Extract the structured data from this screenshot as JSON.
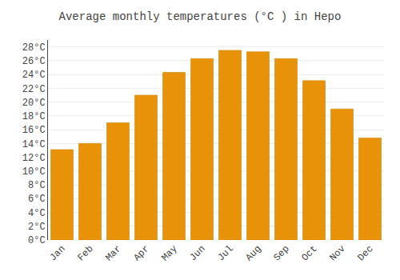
{
  "chart_data": {
    "type": "bar",
    "title": "Average monthly temperatures (°C ) in Hepo",
    "categories": [
      "Jan",
      "Feb",
      "Mar",
      "Apr",
      "May",
      "Jun",
      "Jul",
      "Aug",
      "Sep",
      "Oct",
      "Nov",
      "Dec"
    ],
    "values": [
      13.1,
      14.0,
      17.0,
      21.0,
      24.3,
      26.3,
      27.5,
      27.3,
      26.3,
      23.1,
      19.0,
      14.8
    ],
    "color": "#E8920A",
    "ylim": [
      0,
      29
    ],
    "yticks": [
      {
        "value": 0,
        "label": "0°C"
      },
      {
        "value": 2,
        "label": "2°C"
      },
      {
        "value": 4,
        "label": "4°C"
      },
      {
        "value": 6,
        "label": "6°C"
      },
      {
        "value": 8,
        "label": "8°C"
      },
      {
        "value": 10,
        "label": "10°C"
      },
      {
        "value": 12,
        "label": "12°C"
      },
      {
        "value": 14,
        "label": "14°C"
      },
      {
        "value": 16,
        "label": "16°C"
      },
      {
        "value": 18,
        "label": "18°C"
      },
      {
        "value": 20,
        "label": "20°C"
      },
      {
        "value": 22,
        "label": "22°C"
      },
      {
        "value": 24,
        "label": "24°C"
      },
      {
        "value": 26,
        "label": "26°C"
      },
      {
        "value": 28,
        "label": "28°C"
      }
    ],
    "grid": true
  }
}
